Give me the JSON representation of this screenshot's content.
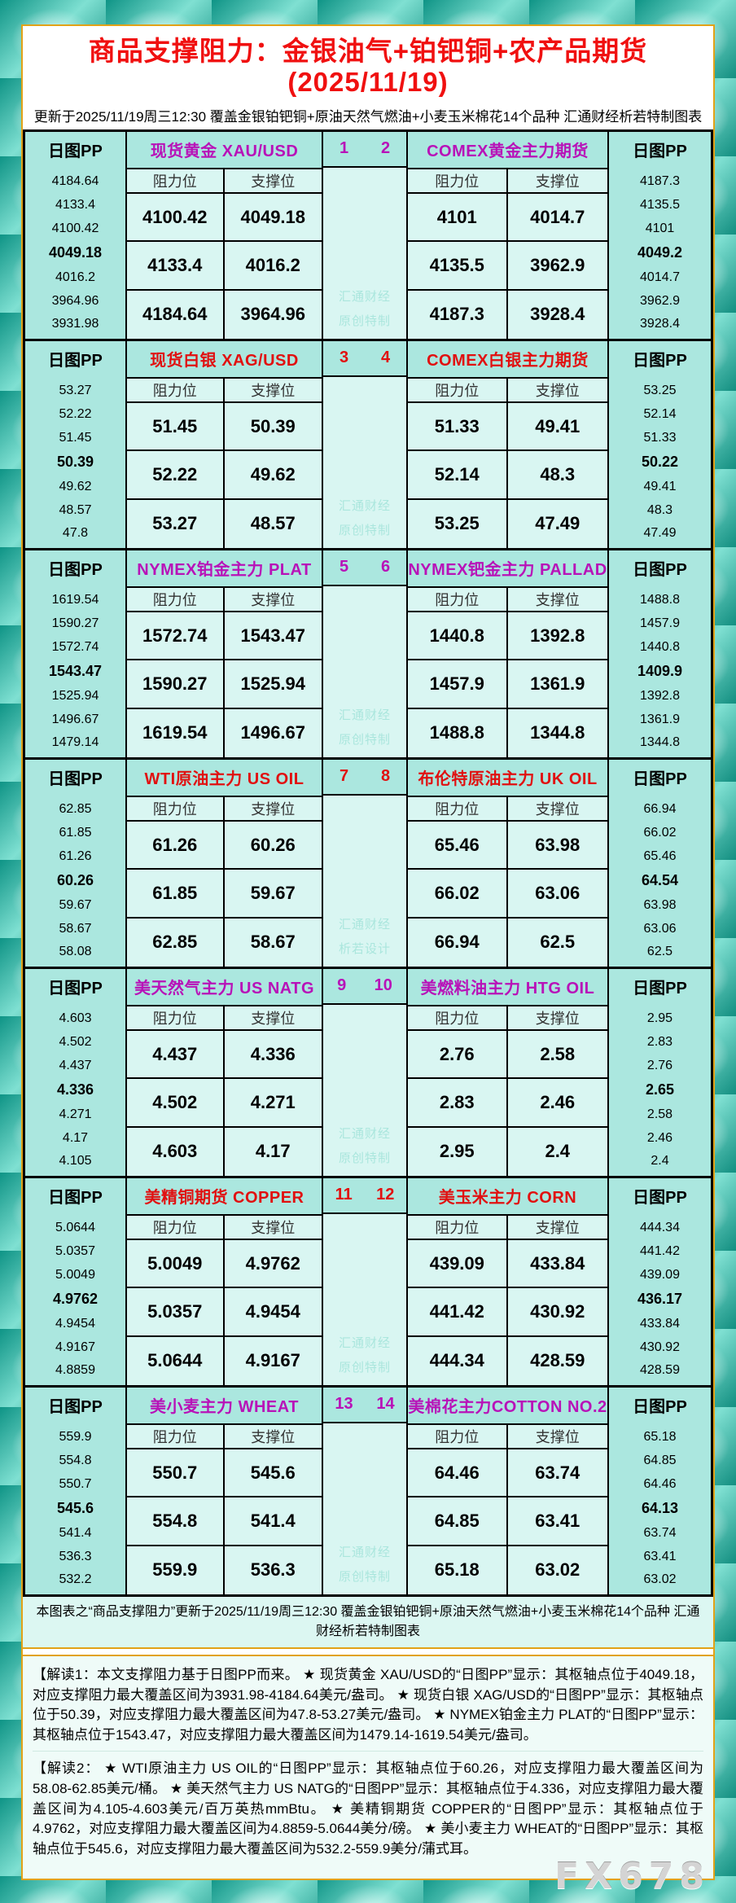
{
  "ui": {
    "header": {
      "title": "商品支撑阻力：金银油气+铂钯铜+农产品期货(2025/11/19)",
      "subtitle": "更新于2025/11/19周三12:30 覆盖金银铂钯铜+原油天然气燃油+小麦玉米棉花14个品种 汇通财经析若特制图表"
    },
    "labels": {
      "pp_header": "日图PP",
      "resistance": "阻力位",
      "support": "支撑位"
    },
    "rows": [
      {
        "accent": "#b812b8",
        "watermark_lines": [
          "汇通财经",
          "原创特制"
        ]
      },
      {
        "accent": "#e11010",
        "watermark_lines": [
          "汇通财经",
          "原创特制"
        ]
      },
      {
        "accent": "#b812b8",
        "watermark_lines": [
          "汇通财经",
          "原创特制"
        ]
      },
      {
        "accent": "#e11010",
        "watermark_lines": [
          "汇通财经",
          "析若设计"
        ]
      },
      {
        "accent": "#b812b8",
        "watermark_lines": [
          "汇通财经",
          "原创特制"
        ]
      },
      {
        "accent": "#e11010",
        "watermark_lines": [
          "汇通财经",
          "原创特制"
        ]
      },
      {
        "accent": "#b812b8",
        "watermark_lines": [
          "汇通财经",
          "原创特制"
        ]
      }
    ],
    "footer": {
      "note": "本图表之“商品支撑阻力”更新于2025/11/19周三12:30 覆盖金银铂钯铜+原油天然气燃油+小麦玉米棉花14个品种 汇通财经析若特制图表",
      "interpretation1": "【解读1：本文支撑阻力基于日图PP而来。 ★ 现货黄金 XAU/USD的“日图PP”显示：其枢轴点位于4049.18，对应支撑阻力最大覆盖区间为3931.98-4184.64美元/盎司。 ★ 现货白银 XAG/USD的“日图PP”显示：其枢轴点位于50.39，对应支撑阻力最大覆盖区间为47.8-53.27美元/盎司。 ★ NYMEX铂金主力 PLAT的“日图PP”显示：其枢轴点位于1543.47，对应支撑阻力最大覆盖区间为1479.14-1619.54美元/盎司。",
      "interpretation2": "【解读2： ★ WTI原油主力 US OIL的“日图PP”显示：其枢轴点位于60.26，对应支撑阻力最大覆盖区间为58.08-62.85美元/桶。 ★ 美天然气主力 US NATG的“日图PP”显示：其枢轴点位于4.336，对应支撑阻力最大覆盖区间为4.105-4.603美元/百万英热mmBtu。 ★ 美精铜期货 COPPER的“日图PP”显示：其枢轴点位于4.9762，对应支撑阻力最大覆盖区间为4.8859-5.0644美分/磅。 ★ 美小麦主力 WHEAT的“日图PP”显示：其枢轴点位于545.6，对应支撑阻力最大覆盖区间为532.2-559.9美分/蒲式耳。",
      "site_watermark": "FX678"
    },
    "colors": {
      "accent_magenta": "#b812b8",
      "accent_red": "#e11010",
      "title_red": "#f01010",
      "gold_border": "#e2a218",
      "aqua_band": "#abe7df",
      "cell_bg": "#d9f6f2",
      "mid_watermark_text": "#aae6dd",
      "site_watermark_gray": "#d4d4d4"
    }
  },
  "chart_data": {
    "type": "table",
    "title": "商品支撑阻力：金银油气+铂钯铜+农产品期货(2025/11/19)",
    "columns": [
      "阻力位",
      "支撑位"
    ],
    "pivot_header": "日图PP",
    "instruments": [
      {
        "num": "1",
        "name": "现货黄金 XAU/USD",
        "resistance": [
          "4100.42",
          "4133.4",
          "4184.64"
        ],
        "support": [
          "4049.18",
          "4016.2",
          "3964.96"
        ],
        "pivot_points": [
          "4184.64",
          "4133.4",
          "4100.42",
          "4049.18",
          "4016.2",
          "3964.96",
          "3931.98"
        ]
      },
      {
        "num": "2",
        "name": "COMEX黄金主力期货",
        "resistance": [
          "4101",
          "4135.5",
          "4187.3"
        ],
        "support": [
          "4014.7",
          "3962.9",
          "3928.4"
        ],
        "pivot_points": [
          "4187.3",
          "4135.5",
          "4101",
          "4049.2",
          "4014.7",
          "3962.9",
          "3928.4"
        ]
      },
      {
        "num": "3",
        "name": "现货白银 XAG/USD",
        "resistance": [
          "51.45",
          "52.22",
          "53.27"
        ],
        "support": [
          "50.39",
          "49.62",
          "48.57"
        ],
        "pivot_points": [
          "53.27",
          "52.22",
          "51.45",
          "50.39",
          "49.62",
          "48.57",
          "47.8"
        ]
      },
      {
        "num": "4",
        "name": "COMEX白银主力期货",
        "resistance": [
          "51.33",
          "52.14",
          "53.25"
        ],
        "support": [
          "49.41",
          "48.3",
          "47.49"
        ],
        "pivot_points": [
          "53.25",
          "52.14",
          "51.33",
          "50.22",
          "49.41",
          "48.3",
          "47.49"
        ]
      },
      {
        "num": "5",
        "name": "NYMEX铂金主力 PLAT",
        "resistance": [
          "1572.74",
          "1590.27",
          "1619.54"
        ],
        "support": [
          "1543.47",
          "1525.94",
          "1496.67"
        ],
        "pivot_points": [
          "1619.54",
          "1590.27",
          "1572.74",
          "1543.47",
          "1525.94",
          "1496.67",
          "1479.14"
        ]
      },
      {
        "num": "6",
        "name": "NYMEX钯金主力 PALLAD",
        "resistance": [
          "1440.8",
          "1457.9",
          "1488.8"
        ],
        "support": [
          "1392.8",
          "1361.9",
          "1344.8"
        ],
        "pivot_points": [
          "1488.8",
          "1457.9",
          "1440.8",
          "1409.9",
          "1392.8",
          "1361.9",
          "1344.8"
        ]
      },
      {
        "num": "7",
        "name": "WTI原油主力 US OIL",
        "resistance": [
          "61.26",
          "61.85",
          "62.85"
        ],
        "support": [
          "60.26",
          "59.67",
          "58.67"
        ],
        "pivot_points": [
          "62.85",
          "61.85",
          "61.26",
          "60.26",
          "59.67",
          "58.67",
          "58.08"
        ]
      },
      {
        "num": "8",
        "name": "布伦特原油主力 UK OIL",
        "resistance": [
          "65.46",
          "66.02",
          "66.94"
        ],
        "support": [
          "63.98",
          "63.06",
          "62.5"
        ],
        "pivot_points": [
          "66.94",
          "66.02",
          "65.46",
          "64.54",
          "63.98",
          "63.06",
          "62.5"
        ]
      },
      {
        "num": "9",
        "name": "美天然气主力 US NATG",
        "resistance": [
          "4.437",
          "4.502",
          "4.603"
        ],
        "support": [
          "4.336",
          "4.271",
          "4.17"
        ],
        "pivot_points": [
          "4.603",
          "4.502",
          "4.437",
          "4.336",
          "4.271",
          "4.17",
          "4.105"
        ]
      },
      {
        "num": "10",
        "name": "美燃料油主力 HTG OIL",
        "resistance": [
          "2.76",
          "2.83",
          "2.95"
        ],
        "support": [
          "2.58",
          "2.46",
          "2.4"
        ],
        "pivot_points": [
          "2.95",
          "2.83",
          "2.76",
          "2.65",
          "2.58",
          "2.46",
          "2.4"
        ]
      },
      {
        "num": "11",
        "name": "美精铜期货 COPPER",
        "resistance": [
          "5.0049",
          "5.0357",
          "5.0644"
        ],
        "support": [
          "4.9762",
          "4.9454",
          "4.9167"
        ],
        "pivot_points": [
          "5.0644",
          "5.0357",
          "5.0049",
          "4.9762",
          "4.9454",
          "4.9167",
          "4.8859"
        ]
      },
      {
        "num": "12",
        "name": "美玉米主力 CORN",
        "resistance": [
          "439.09",
          "441.42",
          "444.34"
        ],
        "support": [
          "433.84",
          "430.92",
          "428.59"
        ],
        "pivot_points": [
          "444.34",
          "441.42",
          "439.09",
          "436.17",
          "433.84",
          "430.92",
          "428.59"
        ]
      },
      {
        "num": "13",
        "name": "美小麦主力 WHEAT",
        "resistance": [
          "550.7",
          "554.8",
          "559.9"
        ],
        "support": [
          "545.6",
          "541.4",
          "536.3"
        ],
        "pivot_points": [
          "559.9",
          "554.8",
          "550.7",
          "545.6",
          "541.4",
          "536.3",
          "532.2"
        ]
      },
      {
        "num": "14",
        "name": "美棉花主力COTTON NO.2",
        "resistance": [
          "64.46",
          "64.85",
          "65.18"
        ],
        "support": [
          "63.74",
          "63.41",
          "63.02"
        ],
        "pivot_points": [
          "65.18",
          "64.85",
          "64.46",
          "64.13",
          "63.74",
          "63.41",
          "63.02"
        ]
      }
    ]
  }
}
